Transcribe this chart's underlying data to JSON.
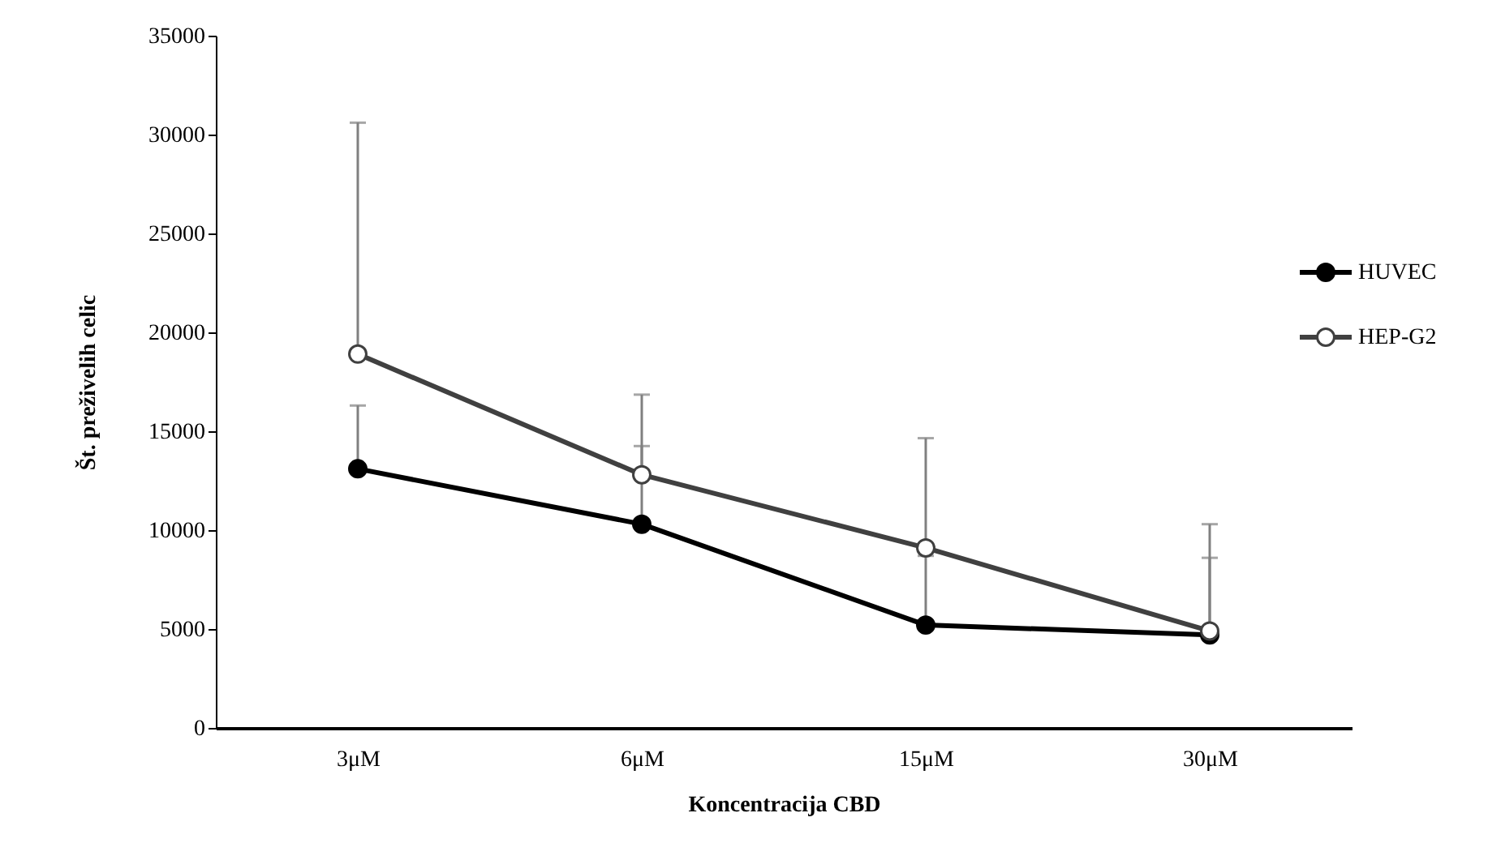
{
  "chart_data": {
    "type": "line",
    "xlabel": "Koncentracija  CBD",
    "ylabel": "Št. preživelih celic",
    "categories": [
      "3μM",
      "6μM",
      "15μM",
      "30μM"
    ],
    "series": [
      {
        "name": "HUVEC",
        "color": "#000000",
        "values": [
          13100,
          10300,
          5200,
          4700
        ],
        "errors": [
          [
            13100,
            16300
          ],
          [
            10300,
            14250
          ],
          [
            5200,
            8700
          ],
          [
            4700,
            8600
          ]
        ]
      },
      {
        "name": "HEP-G2",
        "color": "#404040",
        "values": [
          18900,
          12800,
          9100,
          4900
        ],
        "errors": [
          [
            18900,
            30600
          ],
          [
            12800,
            16850
          ],
          [
            9100,
            14650
          ],
          [
            4900,
            10300
          ]
        ]
      }
    ],
    "ylim": [
      0,
      35000
    ],
    "yticks": [
      0,
      5000,
      10000,
      15000,
      20000,
      25000,
      30000,
      35000
    ],
    "grid": false,
    "legend": "right",
    "marker": "circle",
    "line_style": "solid"
  }
}
